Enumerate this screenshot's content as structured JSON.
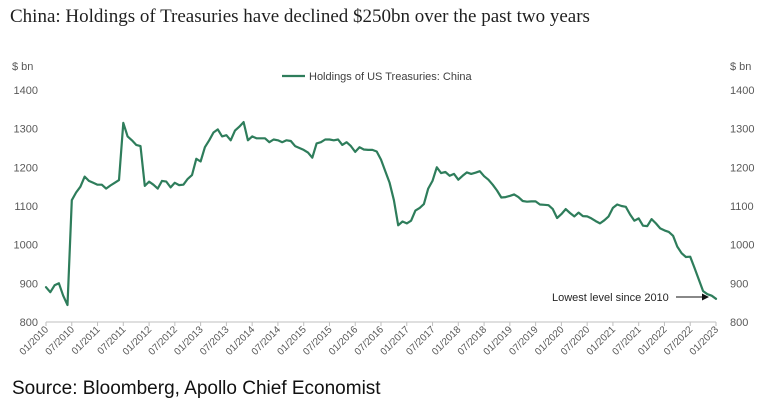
{
  "title": "China: Holdings of Treasuries have declined $250bn over the past two years",
  "source": "Source: Bloomberg, Apollo Chief Economist",
  "colors": {
    "line": "#2e7d5b",
    "axis": "#bfbfbf",
    "text": "#595959"
  },
  "chart_data": {
    "type": "line",
    "left_unit": "$ bn",
    "right_unit": "$ bn",
    "ylim": [
      800,
      1400
    ],
    "yticks": [
      800,
      900,
      1000,
      1100,
      1200,
      1300,
      1400
    ],
    "xlim": [
      "2010-01",
      "2023-01"
    ],
    "xtick_labels": [
      "01/2010",
      "07/2010",
      "01/2011",
      "07/2011",
      "01/2012",
      "07/2012",
      "01/2013",
      "07/2013",
      "01/2014",
      "07/2014",
      "01/2015",
      "07/2015",
      "01/2016",
      "07/2016",
      "01/2017",
      "07/2017",
      "01/2018",
      "07/2018",
      "01/2019",
      "07/2019",
      "01/2020",
      "07/2020",
      "01/2021",
      "07/2021",
      "01/2022",
      "07/2022",
      "01/2023"
    ],
    "grid": false,
    "legend": "top-center",
    "annotation": {
      "text": "Lowest level since 2010",
      "x": "2023-01",
      "y": 860
    },
    "series": [
      {
        "name": "Holdings of US Treasuries: China",
        "points": [
          [
            "2010-01",
            890
          ],
          [
            "2010-02",
            877
          ],
          [
            "2010-03",
            895
          ],
          [
            "2010-04",
            900
          ],
          [
            "2010-05",
            868
          ],
          [
            "2010-06",
            844
          ],
          [
            "2010-07",
            1115
          ],
          [
            "2010-08",
            1135
          ],
          [
            "2010-09",
            1150
          ],
          [
            "2010-10",
            1176
          ],
          [
            "2010-11",
            1165
          ],
          [
            "2010-12",
            1160
          ],
          [
            "2011-01",
            1155
          ],
          [
            "2011-02",
            1155
          ],
          [
            "2011-03",
            1145
          ],
          [
            "2011-04",
            1153
          ],
          [
            "2011-05",
            1160
          ],
          [
            "2011-06",
            1167
          ],
          [
            "2011-07",
            1315
          ],
          [
            "2011-08",
            1280
          ],
          [
            "2011-09",
            1270
          ],
          [
            "2011-10",
            1258
          ],
          [
            "2011-11",
            1255
          ],
          [
            "2011-12",
            1152
          ],
          [
            "2012-01",
            1163
          ],
          [
            "2012-02",
            1155
          ],
          [
            "2012-03",
            1145
          ],
          [
            "2012-04",
            1165
          ],
          [
            "2012-05",
            1163
          ],
          [
            "2012-06",
            1148
          ],
          [
            "2012-07",
            1160
          ],
          [
            "2012-08",
            1154
          ],
          [
            "2012-09",
            1155
          ],
          [
            "2012-10",
            1170
          ],
          [
            "2012-11",
            1180
          ],
          [
            "2012-12",
            1222
          ],
          [
            "2013-01",
            1215
          ],
          [
            "2013-02",
            1252
          ],
          [
            "2013-03",
            1270
          ],
          [
            "2013-04",
            1290
          ],
          [
            "2013-05",
            1298
          ],
          [
            "2013-06",
            1280
          ],
          [
            "2013-07",
            1283
          ],
          [
            "2013-08",
            1270
          ],
          [
            "2013-09",
            1295
          ],
          [
            "2013-10",
            1305
          ],
          [
            "2013-11",
            1317
          ],
          [
            "2013-12",
            1270
          ],
          [
            "2014-01",
            1280
          ],
          [
            "2014-02",
            1275
          ],
          [
            "2014-03",
            1275
          ],
          [
            "2014-04",
            1275
          ],
          [
            "2014-05",
            1265
          ],
          [
            "2014-06",
            1272
          ],
          [
            "2014-07",
            1270
          ],
          [
            "2014-08",
            1265
          ],
          [
            "2014-09",
            1270
          ],
          [
            "2014-10",
            1268
          ],
          [
            "2014-11",
            1255
          ],
          [
            "2014-12",
            1250
          ],
          [
            "2015-01",
            1245
          ],
          [
            "2015-02",
            1238
          ],
          [
            "2015-03",
            1225
          ],
          [
            "2015-04",
            1262
          ],
          [
            "2015-05",
            1265
          ],
          [
            "2015-06",
            1272
          ],
          [
            "2015-07",
            1272
          ],
          [
            "2015-08",
            1270
          ],
          [
            "2015-09",
            1272
          ],
          [
            "2015-10",
            1258
          ],
          [
            "2015-11",
            1265
          ],
          [
            "2015-12",
            1255
          ],
          [
            "2016-01",
            1240
          ],
          [
            "2016-02",
            1252
          ],
          [
            "2016-03",
            1246
          ],
          [
            "2016-04",
            1245
          ],
          [
            "2016-05",
            1245
          ],
          [
            "2016-06",
            1241
          ],
          [
            "2016-07",
            1220
          ],
          [
            "2016-08",
            1190
          ],
          [
            "2016-09",
            1160
          ],
          [
            "2016-10",
            1115
          ],
          [
            "2016-11",
            1050
          ],
          [
            "2016-12",
            1060
          ],
          [
            "2017-01",
            1055
          ],
          [
            "2017-02",
            1062
          ],
          [
            "2017-03",
            1088
          ],
          [
            "2017-04",
            1095
          ],
          [
            "2017-05",
            1105
          ],
          [
            "2017-06",
            1145
          ],
          [
            "2017-07",
            1165
          ],
          [
            "2017-08",
            1200
          ],
          [
            "2017-09",
            1185
          ],
          [
            "2017-10",
            1188
          ],
          [
            "2017-11",
            1178
          ],
          [
            "2017-12",
            1183
          ],
          [
            "2018-01",
            1168
          ],
          [
            "2018-02",
            1178
          ],
          [
            "2018-03",
            1187
          ],
          [
            "2018-04",
            1183
          ],
          [
            "2018-05",
            1186
          ],
          [
            "2018-06",
            1190
          ],
          [
            "2018-07",
            1177
          ],
          [
            "2018-08",
            1168
          ],
          [
            "2018-09",
            1155
          ],
          [
            "2018-10",
            1140
          ],
          [
            "2018-11",
            1122
          ],
          [
            "2018-12",
            1123
          ],
          [
            "2019-01",
            1126
          ],
          [
            "2019-02",
            1130
          ],
          [
            "2019-03",
            1123
          ],
          [
            "2019-04",
            1113
          ],
          [
            "2019-05",
            1111
          ],
          [
            "2019-06",
            1112
          ],
          [
            "2019-07",
            1112
          ],
          [
            "2019-08",
            1104
          ],
          [
            "2019-09",
            1103
          ],
          [
            "2019-10",
            1102
          ],
          [
            "2019-11",
            1092
          ],
          [
            "2019-12",
            1069
          ],
          [
            "2020-01",
            1079
          ],
          [
            "2020-02",
            1092
          ],
          [
            "2020-03",
            1082
          ],
          [
            "2020-04",
            1073
          ],
          [
            "2020-05",
            1083
          ],
          [
            "2020-06",
            1074
          ],
          [
            "2020-07",
            1073
          ],
          [
            "2020-08",
            1068
          ],
          [
            "2020-09",
            1061
          ],
          [
            "2020-10",
            1055
          ],
          [
            "2020-11",
            1063
          ],
          [
            "2020-12",
            1073
          ],
          [
            "2021-01",
            1095
          ],
          [
            "2021-02",
            1104
          ],
          [
            "2021-03",
            1100
          ],
          [
            "2021-04",
            1098
          ],
          [
            "2021-05",
            1078
          ],
          [
            "2021-06",
            1062
          ],
          [
            "2021-07",
            1068
          ],
          [
            "2021-08",
            1049
          ],
          [
            "2021-09",
            1048
          ],
          [
            "2021-10",
            1066
          ],
          [
            "2021-11",
            1055
          ],
          [
            "2021-12",
            1042
          ],
          [
            "2022-01",
            1037
          ],
          [
            "2022-02",
            1033
          ],
          [
            "2022-03",
            1023
          ],
          [
            "2022-04",
            995
          ],
          [
            "2022-05",
            978
          ],
          [
            "2022-06",
            968
          ],
          [
            "2022-07",
            969
          ],
          [
            "2022-08",
            940
          ],
          [
            "2022-09",
            910
          ],
          [
            "2022-10",
            880
          ],
          [
            "2022-11",
            872
          ],
          [
            "2022-12",
            868
          ],
          [
            "2023-01",
            860
          ]
        ]
      }
    ]
  }
}
